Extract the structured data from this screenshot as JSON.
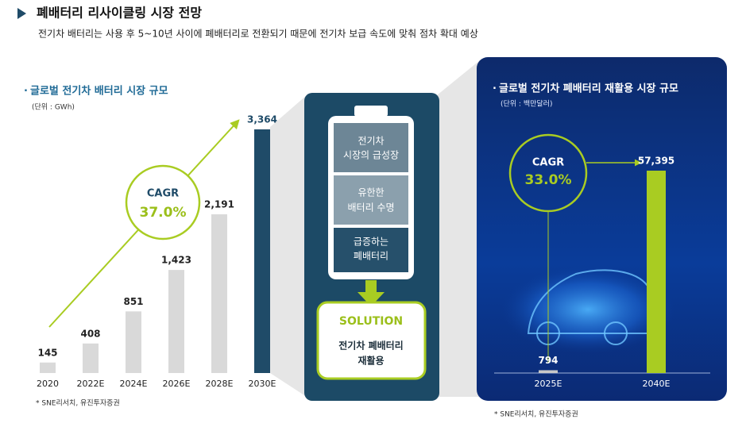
{
  "header": {
    "title": "폐배터리 리사이클링 시장 전망",
    "subtitle": "전기차 배터리는 사용 후 5~10년 사이에 폐배터리로 전환되기 때문에 전기차 보급 속도에 맞춰 점차 확대 예상"
  },
  "chart_data": [
    {
      "type": "bar",
      "title": "글로벌 전기차 배터리 시장 규모",
      "subtitle": "(단위 : GWh)",
      "categories": [
        "2020",
        "2022E",
        "2024E",
        "2026E",
        "2028E",
        "2030E"
      ],
      "values": [
        145,
        408,
        851,
        1423,
        2191,
        3364
      ],
      "value_labels": [
        "145",
        "408",
        "851",
        "1,423",
        "2,191",
        "3,364"
      ],
      "colors": [
        "#d9d9d9",
        "#d9d9d9",
        "#d9d9d9",
        "#d9d9d9",
        "#d9d9d9",
        "#1f4b68"
      ],
      "annotations": [
        "CAGR",
        "37.0%"
      ],
      "source": "* SNE리서치, 유진투자증권"
    },
    {
      "type": "bar",
      "title": "글로벌 전기차 폐배터리 재활용 시장 규모",
      "subtitle": "(단위 : 백만달러)",
      "categories": [
        "2025E",
        "2040E"
      ],
      "values": [
        794,
        57395
      ],
      "value_labels": [
        "794",
        "57,395"
      ],
      "colors": [
        "#c8c8c8",
        "#a9cc22"
      ],
      "annotations": [
        "CAGR",
        "33.0%"
      ],
      "source": "* SNE리서치, 유진투자증권"
    }
  ],
  "battery": {
    "cells": [
      {
        "lines": [
          "전기차",
          "시장의 급성장"
        ]
      },
      {
        "lines": [
          "유한한",
          "배터리 수명"
        ]
      },
      {
        "lines": [
          "급증하는",
          "폐배터리"
        ]
      }
    ],
    "solution": {
      "title": "SOLUTION",
      "lines": [
        "전기차 폐배터리",
        "재활용"
      ]
    }
  }
}
